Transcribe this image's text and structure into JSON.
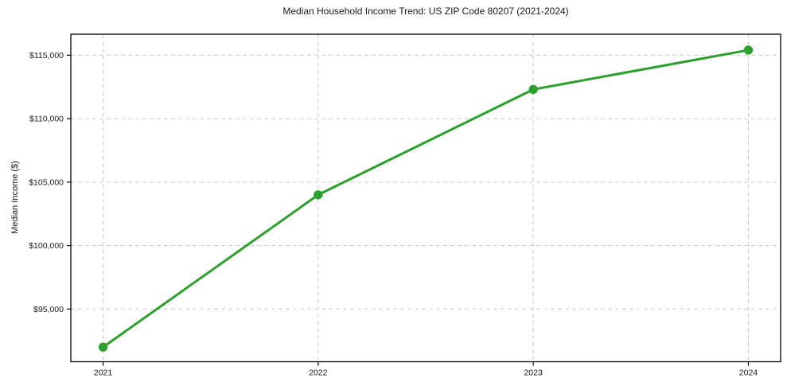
{
  "chart_data": {
    "type": "line",
    "title": "Median Household Income Trend: US ZIP Code 80207 (2021-2024)",
    "xlabel": "",
    "ylabel": "Median Income ($)",
    "categories": [
      "2021",
      "2022",
      "2023",
      "2024"
    ],
    "series": [
      {
        "name": "median_household_income",
        "values": [
          92000,
          104000,
          112300,
          115400
        ]
      }
    ],
    "yticks": [
      95000,
      100000,
      105000,
      110000,
      115000
    ],
    "ytick_labels": [
      "$95,000",
      "$100,000",
      "$105,000",
      "$110,000",
      "$115,000"
    ],
    "xlim": [
      2020.85,
      2024.15
    ],
    "ylim": [
      90850,
      116650
    ],
    "grid": "on",
    "grid_style": "dashed",
    "legend": "none",
    "colors": {
      "line": "#2ca02c",
      "marker": "#2ca02c",
      "grid": "#cccccc",
      "frame": "#000000",
      "text": "#1a1a1a",
      "background": "#ffffff"
    }
  }
}
